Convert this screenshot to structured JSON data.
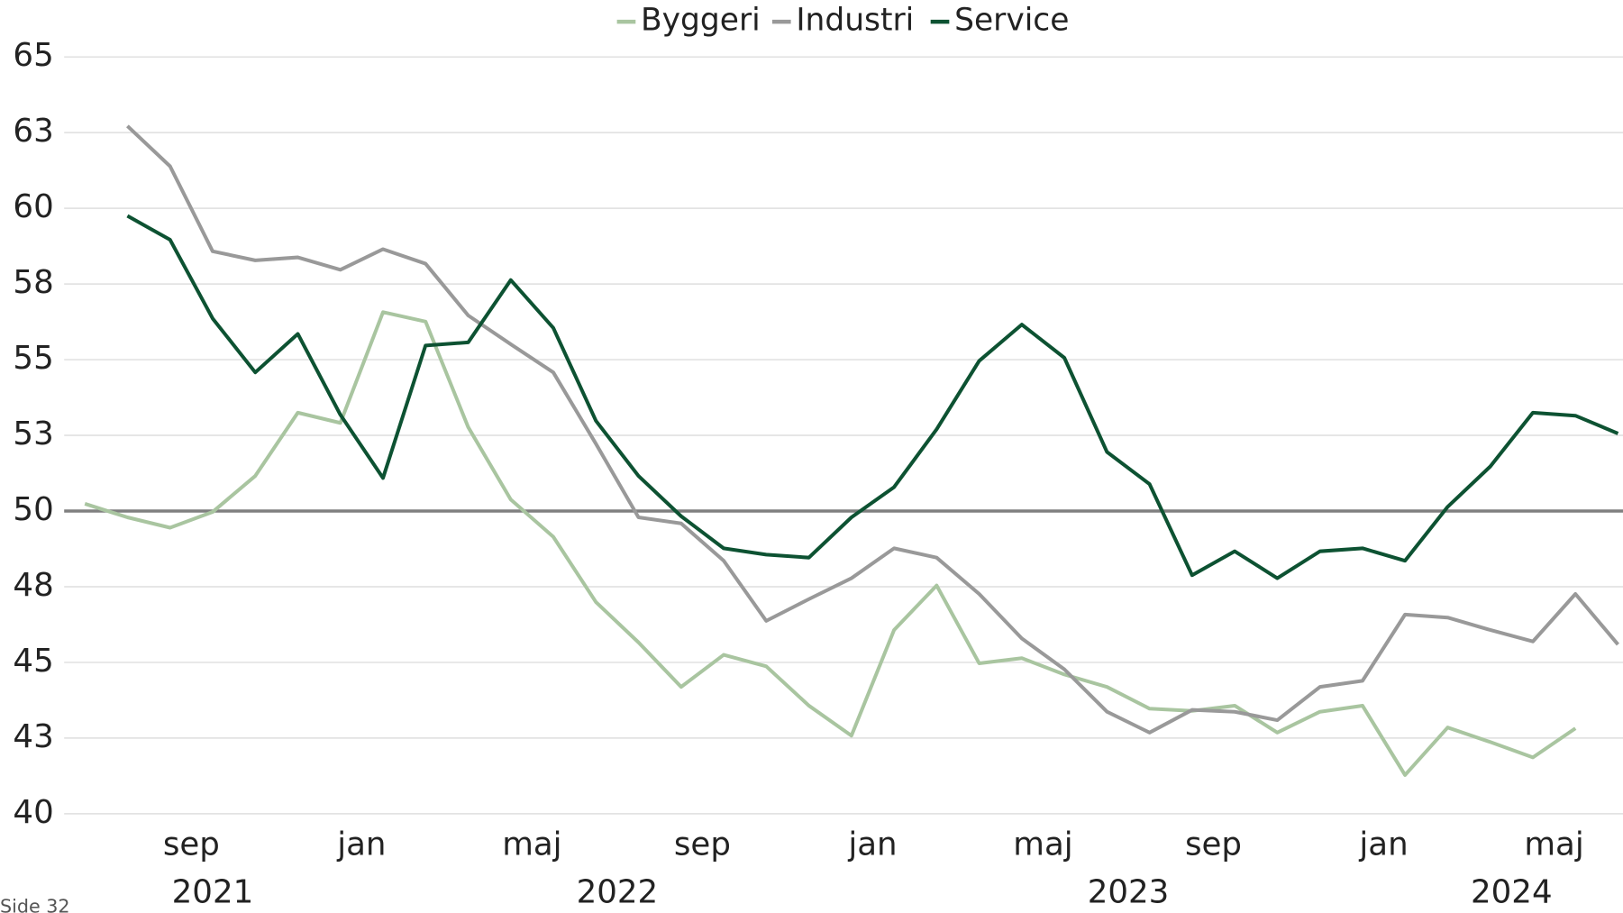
{
  "chart_data": {
    "type": "line",
    "categories": [
      null,
      null,
      null,
      "sep",
      null,
      null,
      null,
      "jan",
      null,
      null,
      null,
      "maj",
      null,
      null,
      null,
      "sep",
      null,
      null,
      null,
      "jan",
      null,
      null,
      null,
      "maj",
      null,
      null,
      null,
      "sep",
      null,
      null,
      null,
      "jan",
      null,
      null,
      null,
      "maj",
      null
    ],
    "years": [
      "2021",
      "2022",
      "2023",
      "2024"
    ],
    "series": [
      {
        "name": "Byggeri",
        "color": "#a9c5a0",
        "values": [
          50.24,
          49.79,
          49.45,
          49.97,
          51.16,
          53.25,
          52.91,
          56.57,
          56.26,
          52.77,
          50.38,
          49.15,
          46.99,
          45.66,
          44.19,
          45.25,
          44.87,
          43.57,
          42.58,
          46.07,
          47.54,
          44.97,
          45.14,
          44.6,
          44.19,
          43.47,
          43.4,
          43.57,
          42.68,
          43.37,
          43.57,
          41.28,
          42.85,
          42.37,
          41.86,
          42.82,
          null
        ]
      },
      {
        "name": "Industri",
        "color": "#999999",
        "values": [
          null,
          62.72,
          61.39,
          58.58,
          58.28,
          58.38,
          57.97,
          58.65,
          58.17,
          56.46,
          55.51,
          54.58,
          52.22,
          49.79,
          49.59,
          48.36,
          46.37,
          47.09,
          47.78,
          48.77,
          48.46,
          47.26,
          45.79,
          44.77,
          43.37,
          42.68,
          43.43,
          43.37,
          43.09,
          44.19,
          44.39,
          46.58,
          46.48,
          46.07,
          45.69,
          47.26,
          45.59
        ]
      },
      {
        "name": "Service",
        "color": "#0d5232",
        "values": [
          null,
          59.75,
          58.96,
          56.36,
          54.58,
          55.85,
          53.18,
          51.09,
          55.47,
          55.57,
          57.63,
          56.05,
          52.98,
          51.16,
          49.83,
          48.77,
          48.56,
          48.46,
          49.79,
          50.79,
          52.7,
          54.96,
          56.16,
          55.06,
          51.95,
          50.89,
          47.88,
          48.67,
          47.78,
          48.67,
          48.77,
          48.36,
          50.14,
          51.47,
          53.25,
          53.15,
          52.56
        ]
      }
    ],
    "ylim": [
      40,
      65
    ],
    "yticks": [
      40,
      {
        "value": 42.5,
        "label": "43"
      },
      45,
      {
        "value": 47.5,
        "label": "48"
      },
      50,
      {
        "value": 52.5,
        "label": "53"
      },
      55,
      {
        "value": 57.5,
        "label": "58"
      },
      60,
      {
        "value": 62.5,
        "label": "63"
      },
      65
    ],
    "reference_line": 50,
    "grid": true,
    "legend": "top"
  },
  "footer": "Side 32"
}
